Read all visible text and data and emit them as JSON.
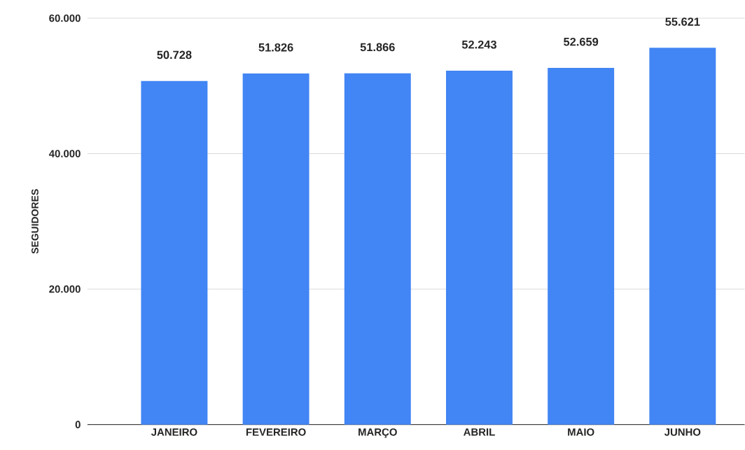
{
  "chart_data": {
    "type": "bar",
    "ylabel": "SEGUIDORES",
    "categories": [
      "JANEIRO",
      "FEVEREIRO",
      "MARÇO",
      "ABRIL",
      "MAIO",
      "JUNHO"
    ],
    "values": [
      50728,
      51826,
      51866,
      52243,
      52659,
      55621
    ],
    "value_labels": [
      "50.728",
      "51.826",
      "51.866",
      "52.243",
      "52.659",
      "55.621"
    ],
    "color": "#4285f4",
    "ylim": [
      0,
      60000
    ],
    "yticks": [
      0,
      {
        "value": 20000,
        "label": "20.000"
      },
      {
        "value": 40000,
        "label": "40.000"
      },
      {
        "value": 60000,
        "label": "60.000"
      }
    ],
    "grid": "y"
  }
}
